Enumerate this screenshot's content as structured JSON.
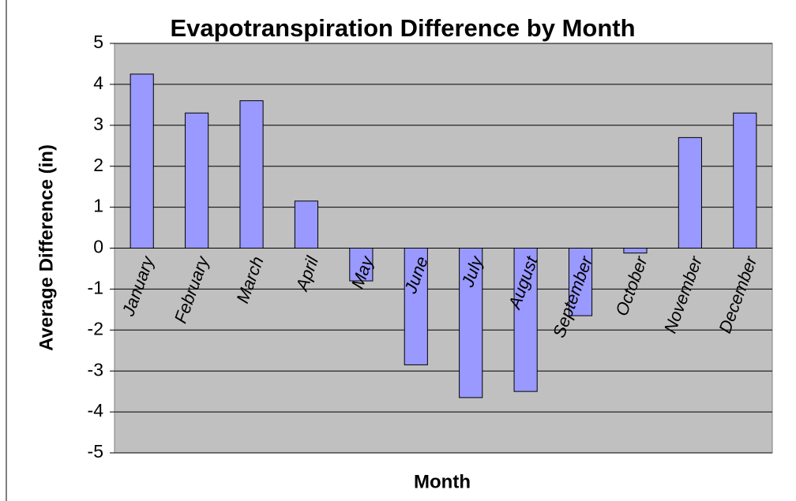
{
  "chart_data": {
    "type": "bar",
    "title": "Evapotranspiration Difference by Month",
    "x_label": "Month",
    "y_label": "Average Difference (in)",
    "categories": [
      "January",
      "February",
      "March",
      "April",
      "May",
      "June",
      "July",
      "August",
      "September",
      "October",
      "November",
      "December"
    ],
    "values": [
      4.25,
      3.3,
      3.6,
      1.15,
      -0.8,
      -2.85,
      -3.65,
      -3.5,
      -1.65,
      -0.12,
      2.7,
      3.3
    ],
    "color": "#9999ff",
    "ylim": [
      -5,
      5
    ],
    "yticks": [
      -5,
      -4,
      -3,
      -2,
      -1,
      0,
      1,
      2,
      3,
      4,
      5
    ],
    "grid": true
  }
}
